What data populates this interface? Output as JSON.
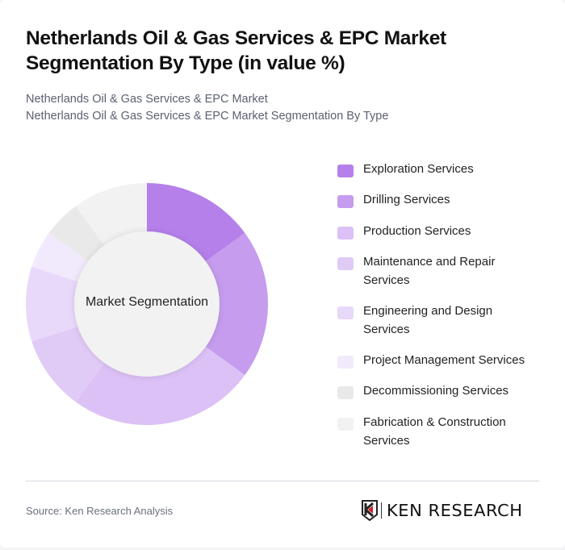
{
  "header": {
    "title": "Netherlands Oil & Gas Services & EPC Market Segmentation By Type (in value %)",
    "subtitle_line1": "Netherlands Oil & Gas Services & EPC Market",
    "subtitle_line2": "Netherlands Oil & Gas Services & EPC Market Segmentation By Type"
  },
  "chart": {
    "center_label": "Market Segmentation"
  },
  "legend": [
    {
      "label": "Exploration Services",
      "color": "#b580ea"
    },
    {
      "label": "Drilling Services",
      "color": "#c59cee"
    },
    {
      "label": "Production Services",
      "color": "#dbc1f6"
    },
    {
      "label": "Maintenance and Repair Services",
      "color": "#e0cbf6"
    },
    {
      "label": "Engineering and Design Services",
      "color": "#e8d8fa"
    },
    {
      "label": "Project Management Services",
      "color": "#f1eafc"
    },
    {
      "label": "Decommissioning Services",
      "color": "#e9e9e9"
    },
    {
      "label": "Fabrication & Construction Services",
      "color": "#f2f2f2"
    }
  ],
  "footer": {
    "source": "Source: Ken Research Analysis",
    "logo_text": "KEN RESEARCH"
  },
  "chart_data": {
    "type": "pie",
    "variant": "donut",
    "title": "Netherlands Oil & Gas Services & EPC Market Segmentation By Type (in value %)",
    "center_label": "Market Segmentation",
    "categories": [
      "Exploration Services",
      "Drilling Services",
      "Production Services",
      "Maintenance and Repair Services",
      "Engineering and Design Services",
      "Project Management Services",
      "Decommissioning Services",
      "Fabrication & Construction Services"
    ],
    "values": [
      15,
      20,
      25,
      10,
      10,
      5,
      5,
      10
    ],
    "colors": [
      "#b580ea",
      "#c59cee",
      "#dbc1f6",
      "#e0cbf6",
      "#e8d8fa",
      "#f1eafc",
      "#e9e9e9",
      "#f2f2f2"
    ],
    "unit": "%",
    "legend_position": "right",
    "start_angle": "top, clockwise"
  }
}
